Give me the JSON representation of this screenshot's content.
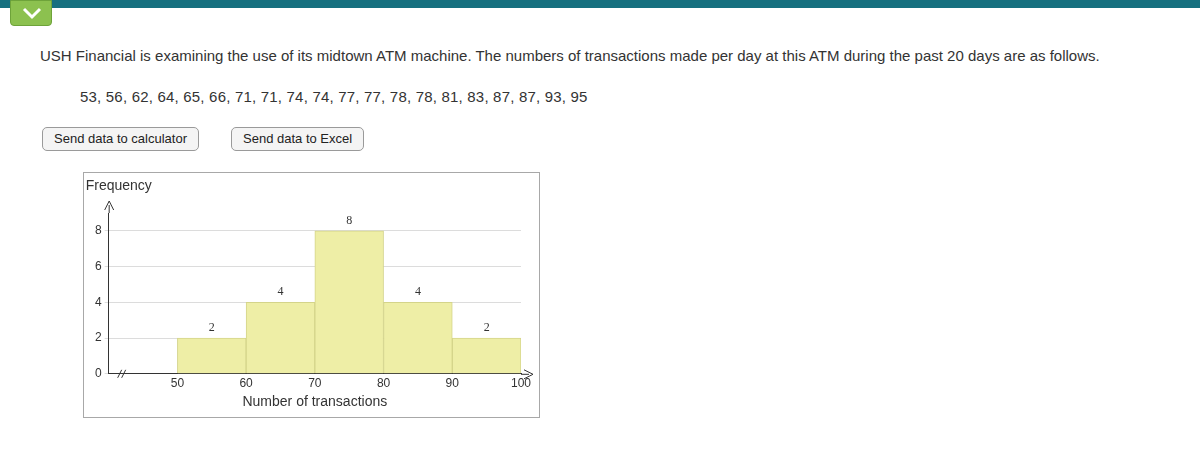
{
  "header": {
    "text": "USH Financial is examining the use of its midtown ATM machine. The numbers of transactions made per day at this ATM during the past 20 days are as follows."
  },
  "data_line": "53, 56, 62, 64, 65, 66, 71, 71, 74, 74, 77, 77, 78, 78, 81, 83, 87, 87, 93, 95",
  "buttons": [
    "Send data to calculator",
    "Send data to Excel"
  ],
  "chart_data": {
    "type": "histogram",
    "ylabel": "Frequency",
    "xlabel": "Number of transactions",
    "bins": [
      50,
      60,
      70,
      80,
      90,
      100
    ],
    "values": [
      2,
      4,
      8,
      4,
      2
    ],
    "color": "#eeeea6",
    "xlim": [
      40,
      100
    ],
    "xticks": [
      50,
      60,
      70,
      80,
      90,
      100
    ],
    "ylim": [
      0,
      9
    ],
    "yticks": [
      0,
      2,
      4,
      6,
      8
    ],
    "grid": true,
    "data_labels": true
  }
}
